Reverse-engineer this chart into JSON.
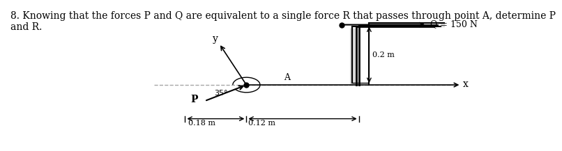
{
  "title_text": "8. Knowing that the forces P and Q are equivalent to a single force R that passes through point A, determine P\nand R.",
  "title_fontsize": 10,
  "background_color": "#ffffff",
  "diagram_bg": "#e8e0d0",
  "Q_label": "Q = 150 N",
  "Q_value": 150,
  "dim_02": "0.2 m",
  "dim_018": "0.18 m",
  "dim_012": "0.12 m",
  "angle_label": "35°",
  "P_label": "P",
  "A_label": "A",
  "x_label": "x",
  "y_label": "y"
}
